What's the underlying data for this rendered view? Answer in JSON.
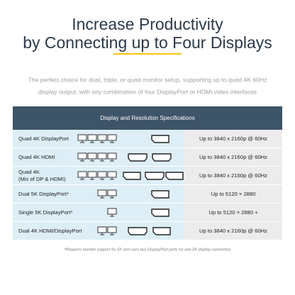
{
  "header": {
    "title_lines": [
      "Increase Productivity",
      "by Connecting up to Four Displays"
    ],
    "description_lines": [
      "The perfect choice for dual, triple, or quad monitor setup, supporting up to quad 4K 60Hz",
      "display output, with any combination of four DisplayPort or HDMI video interfaces"
    ]
  },
  "table": {
    "title": "Display and Resolution Specifications",
    "rows": [
      {
        "label": [
          "Quad 4K DisplayPort"
        ],
        "resolution": "Up to 3840 x 2160p @ 60Hz"
      },
      {
        "label": [
          "Quad 4K HDMI"
        ],
        "resolution": "Up to 3840 x 2160p @ 60Hz"
      },
      {
        "label": [
          "Quad 4K",
          "(Mix of DP & HDMI)"
        ],
        "resolution": "Up to 3840 x 2160p @ 60Hz"
      },
      {
        "label": [
          "Dual 5K DisplayPort*"
        ],
        "resolution": "Up to 5120 × 2880"
      },
      {
        "label": [
          "Single 5K DisplayPort*"
        ],
        "resolution": "Up to 5120 × 2880 +"
      },
      {
        "label": [
          "Dual 4K HDMI/DisplayPort"
        ],
        "resolution": "Up to 3840 x 2160p @ 60Hz"
      }
    ]
  },
  "footnote": "*Requires monitor support for 5K and uses two DisplayPort ports for one 5K display connection"
}
